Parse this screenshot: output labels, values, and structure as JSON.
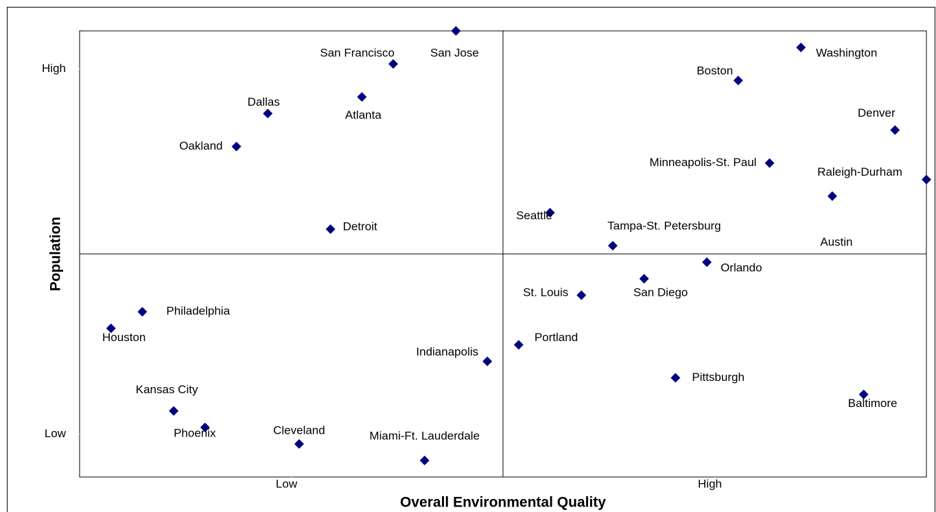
{
  "chart_data": {
    "type": "scatter",
    "x_label": "Overall Environmental Quality",
    "y_label": "Population",
    "xlim": [
      0,
      27
    ],
    "ylim": [
      0,
      27
    ],
    "xticks": [
      {
        "value": 6.75,
        "label": "Low"
      },
      {
        "value": 20.25,
        "label": "High"
      }
    ],
    "yticks": [
      {
        "value": 2.6,
        "label": "Low"
      },
      {
        "value": 24.7,
        "label": "High"
      }
    ],
    "x_divider": 13.5,
    "y_divider": 13.5,
    "color": "#000080",
    "labels": [
      "Houston",
      "Philadelphia",
      "Kansas City",
      "Phoenix",
      "Oakland",
      "Dallas",
      "Cleveland",
      "Detroit",
      "Atlanta",
      "San Francisco",
      "Miami-Ft. Lauderdale",
      "San Jose",
      "Indianapolis",
      "Portland",
      "Seattle",
      "St. Louis",
      "Tampa-St. Petersburg",
      "San Diego",
      "Pittsburgh",
      "Orlando",
      "Boston",
      "Minneapolis-St. Paul",
      "Washington",
      "Austin",
      "Baltimore",
      "Denver",
      "Raleigh-Durham"
    ],
    "x": [
      1,
      2,
      3,
      4,
      5,
      6,
      7,
      8,
      9,
      10,
      11,
      12,
      13,
      14,
      15,
      16,
      17,
      18,
      19,
      20,
      21,
      22,
      23,
      24,
      25,
      26,
      27
    ],
    "values": [
      9,
      10,
      4,
      3,
      20,
      22,
      2,
      15,
      23,
      25,
      1,
      27,
      7,
      8,
      16,
      11,
      14,
      12,
      6,
      13,
      24,
      19,
      26,
      17,
      5,
      21,
      18
    ]
  }
}
